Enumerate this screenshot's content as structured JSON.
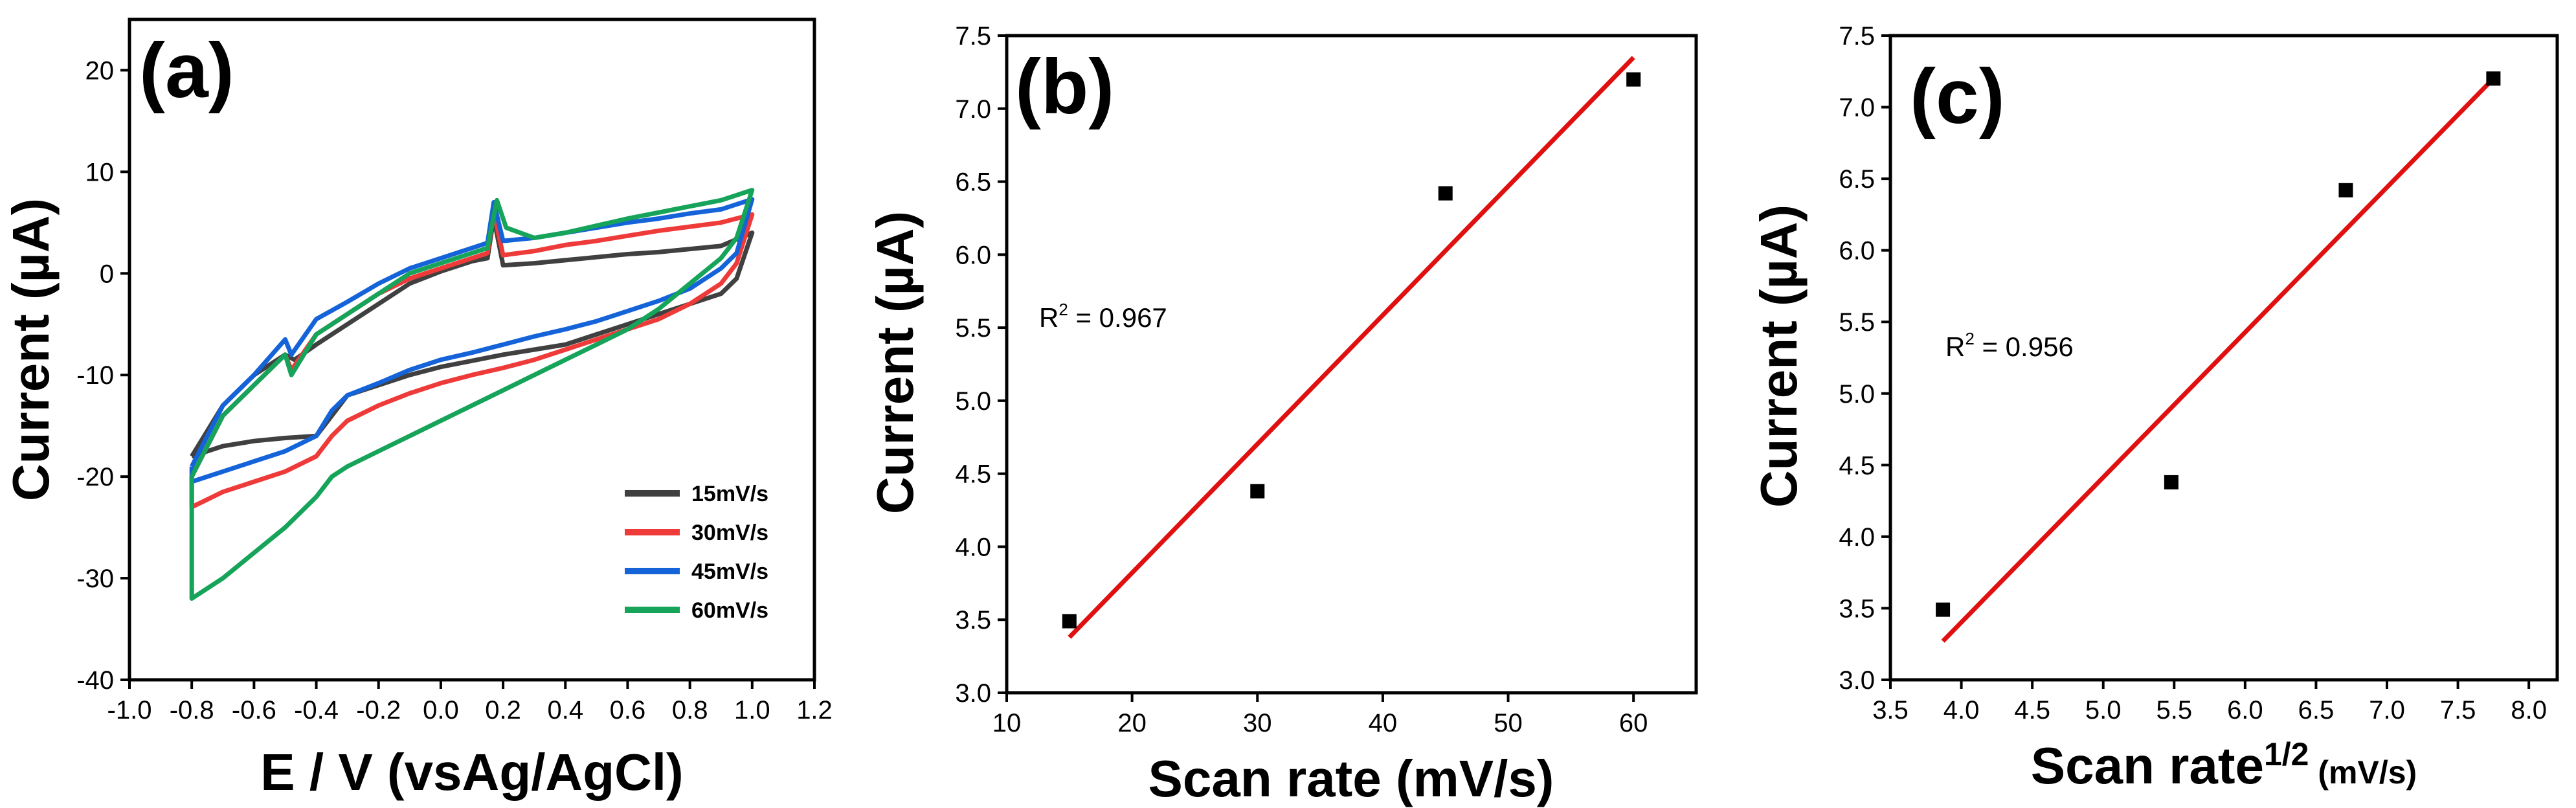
{
  "colors": {
    "s15": "#404040",
    "s30": "#ef3a3a",
    "s45": "#1463d9",
    "s60": "#16a35a",
    "fit": "#e01010",
    "point": "#000000",
    "axis": "#000000"
  },
  "chart_data": [
    {
      "type": "line",
      "panel_label": "(a)",
      "xlabel": "E / V (vsAg/AgCl)",
      "ylabel_main": "Current (",
      "ylabel_mu": "µA",
      "ylabel_end": ")",
      "xlim": [
        -1.0,
        1.2
      ],
      "ylim": [
        -40,
        25
      ],
      "xticks": [
        "-1.0",
        "-0.8",
        "-0.6",
        "-0.4",
        "-0.2",
        "0.0",
        "0.2",
        "0.4",
        "0.6",
        "0.8",
        "1.0",
        "1.2"
      ],
      "yticks": [
        "20",
        "10",
        "0",
        "-10",
        "-20",
        "-30",
        "-40"
      ],
      "legend_position": "bottom-right",
      "series": [
        {
          "name": "15mV/s",
          "color_key": "s15",
          "x": [
            -0.8,
            -0.7,
            -0.6,
            -0.5,
            -0.47,
            -0.4,
            -0.3,
            -0.2,
            -0.1,
            0.0,
            0.1,
            0.15,
            0.17,
            0.2,
            0.3,
            0.4,
            0.5,
            0.6,
            0.7,
            0.8,
            0.9,
            1.0,
            0.95,
            0.9,
            0.8,
            0.7,
            0.6,
            0.5,
            0.4,
            0.3,
            0.2,
            0.1,
            0.0,
            -0.1,
            -0.2,
            -0.3,
            -0.35,
            -0.4,
            -0.5,
            -0.6,
            -0.7,
            -0.8
          ],
          "y": [
            -18,
            -13,
            -10,
            -8,
            -8.5,
            -7,
            -5,
            -3,
            -1,
            0.2,
            1.2,
            1.5,
            5.5,
            0.8,
            1,
            1.3,
            1.6,
            1.9,
            2.1,
            2.4,
            2.7,
            4,
            -0.5,
            -2,
            -3,
            -4,
            -5,
            -6,
            -7,
            -7.5,
            -8,
            -8.6,
            -9.2,
            -10,
            -11,
            -12,
            -14,
            -16,
            -16.2,
            -16.5,
            -17,
            -18
          ]
        },
        {
          "name": "30mV/s",
          "color_key": "s30",
          "x": [
            -0.8,
            -0.7,
            -0.6,
            -0.5,
            -0.48,
            -0.4,
            -0.3,
            -0.2,
            -0.1,
            0.0,
            0.1,
            0.15,
            0.17,
            0.2,
            0.3,
            0.4,
            0.5,
            0.6,
            0.7,
            0.8,
            0.9,
            1.0,
            0.95,
            0.9,
            0.8,
            0.7,
            0.6,
            0.5,
            0.4,
            0.3,
            0.2,
            0.1,
            0.0,
            -0.1,
            -0.2,
            -0.3,
            -0.35,
            -0.4,
            -0.5,
            -0.6,
            -0.7,
            -0.8
          ],
          "y": [
            -20,
            -14,
            -11,
            -8,
            -9.5,
            -6,
            -4,
            -2,
            -0.5,
            0.5,
            1.5,
            2,
            6,
            1.8,
            2.2,
            2.8,
            3.2,
            3.7,
            4.2,
            4.6,
            5,
            5.8,
            1,
            -1,
            -3,
            -4.5,
            -5.5,
            -6.5,
            -7.5,
            -8.5,
            -9.3,
            -10,
            -10.8,
            -11.8,
            -13,
            -14.5,
            -16,
            -18,
            -19.5,
            -20.5,
            -21.5,
            -23
          ]
        },
        {
          "name": "45mV/s",
          "color_key": "s45",
          "x": [
            -0.8,
            -0.7,
            -0.6,
            -0.5,
            -0.48,
            -0.4,
            -0.3,
            -0.2,
            -0.1,
            0.0,
            0.1,
            0.15,
            0.17,
            0.2,
            0.3,
            0.4,
            0.5,
            0.6,
            0.7,
            0.8,
            0.9,
            1.0,
            0.95,
            0.9,
            0.8,
            0.7,
            0.6,
            0.5,
            0.4,
            0.3,
            0.2,
            0.1,
            0.0,
            -0.1,
            -0.2,
            -0.3,
            -0.35,
            -0.4,
            -0.5,
            -0.6,
            -0.7,
            -0.8
          ],
          "y": [
            -19,
            -13,
            -10,
            -6.5,
            -8,
            -4.5,
            -2.8,
            -1,
            0.5,
            1.5,
            2.5,
            3,
            7,
            3.2,
            3.5,
            4,
            4.5,
            5,
            5.4,
            5.9,
            6.3,
            7.3,
            2,
            0.5,
            -1.5,
            -2.7,
            -3.7,
            -4.7,
            -5.5,
            -6.2,
            -7,
            -7.8,
            -8.5,
            -9.5,
            -10.8,
            -12,
            -13.5,
            -16,
            -17.5,
            -18.5,
            -19.5,
            -20.5
          ]
        },
        {
          "name": "60mV/s",
          "color_key": "s60",
          "x": [
            -0.8,
            -0.7,
            -0.6,
            -0.5,
            -0.48,
            -0.4,
            -0.3,
            -0.2,
            -0.1,
            0.0,
            0.1,
            0.15,
            0.18,
            0.21,
            0.3,
            0.4,
            0.5,
            0.6,
            0.7,
            0.8,
            0.9,
            1.0,
            0.95,
            0.9,
            0.8,
            0.7,
            0.6,
            0.5,
            0.4,
            0.3,
            0.2,
            0.1,
            0.0,
            -0.1,
            -0.2,
            -0.3,
            -0.35,
            -0.4,
            -0.5,
            -0.6,
            -0.7,
            -0.8
          ],
          "y": [
            -20,
            -14,
            -11,
            -8,
            -10,
            -6,
            -4,
            -2,
            0,
            1,
            2,
            2.5,
            7.2,
            4.5,
            3.5,
            4,
            4.7,
            5.4,
            6,
            6.6,
            7.2,
            8.2,
            3.5,
            1.5,
            -1,
            -3.5,
            -5.5,
            -7,
            -8.5,
            -10,
            -11.5,
            -13,
            -14.5,
            -16,
            -17.5,
            -19,
            -20,
            -22,
            -25,
            -27.5,
            -30,
            -32
          ]
        }
      ]
    },
    {
      "type": "scatter",
      "panel_label": "(b)",
      "xlabel": "Scan rate (mV/s)",
      "ylabel_main": "Current (",
      "ylabel_mu": "µA",
      "ylabel_end": ")",
      "xlim": [
        10,
        65
      ],
      "ylim": [
        3.0,
        7.5
      ],
      "xticks": [
        "10",
        "20",
        "30",
        "40",
        "50",
        "60"
      ],
      "yticks": [
        "7.5",
        "7.0",
        "6.5",
        "6.0",
        "5.5",
        "5.0",
        "4.5",
        "4.0",
        "3.5",
        "3.0"
      ],
      "points": {
        "x": [
          15,
          30,
          45,
          60
        ],
        "y": [
          3.49,
          4.38,
          6.42,
          7.2
        ]
      },
      "fit_line": {
        "x": [
          15,
          60
        ],
        "y": [
          3.38,
          7.35
        ]
      },
      "r2_base": "R",
      "r2_sup": "2",
      "r2_value": " = 0.967"
    },
    {
      "type": "scatter",
      "panel_label": "(c)",
      "xlabel_main": "Scan rate",
      "xlabel_sup": "1/2",
      "xlabel_end": " (mV/s)",
      "ylabel_main": "Current (",
      "ylabel_mu": "µA",
      "ylabel_end": ")",
      "xlim": [
        3.5,
        8.2
      ],
      "ylim": [
        3.0,
        7.5
      ],
      "xticks": [
        "3.5",
        "4.0",
        "4.5",
        "5.0",
        "5.5",
        "6.0",
        "6.5",
        "7.0",
        "7.5",
        "8.0"
      ],
      "yticks": [
        "7.5",
        "7.0",
        "6.5",
        "6.0",
        "5.5",
        "5.0",
        "4.5",
        "4.0",
        "3.5",
        "3.0"
      ],
      "points": {
        "x": [
          3.87,
          5.48,
          6.71,
          7.75
        ],
        "y": [
          3.49,
          4.38,
          6.42,
          7.2
        ]
      },
      "fit_line": {
        "x": [
          3.87,
          7.75
        ],
        "y": [
          3.27,
          7.2
        ]
      },
      "r2_base": "R",
      "r2_sup": "2",
      "r2_value": " = 0.956"
    }
  ]
}
